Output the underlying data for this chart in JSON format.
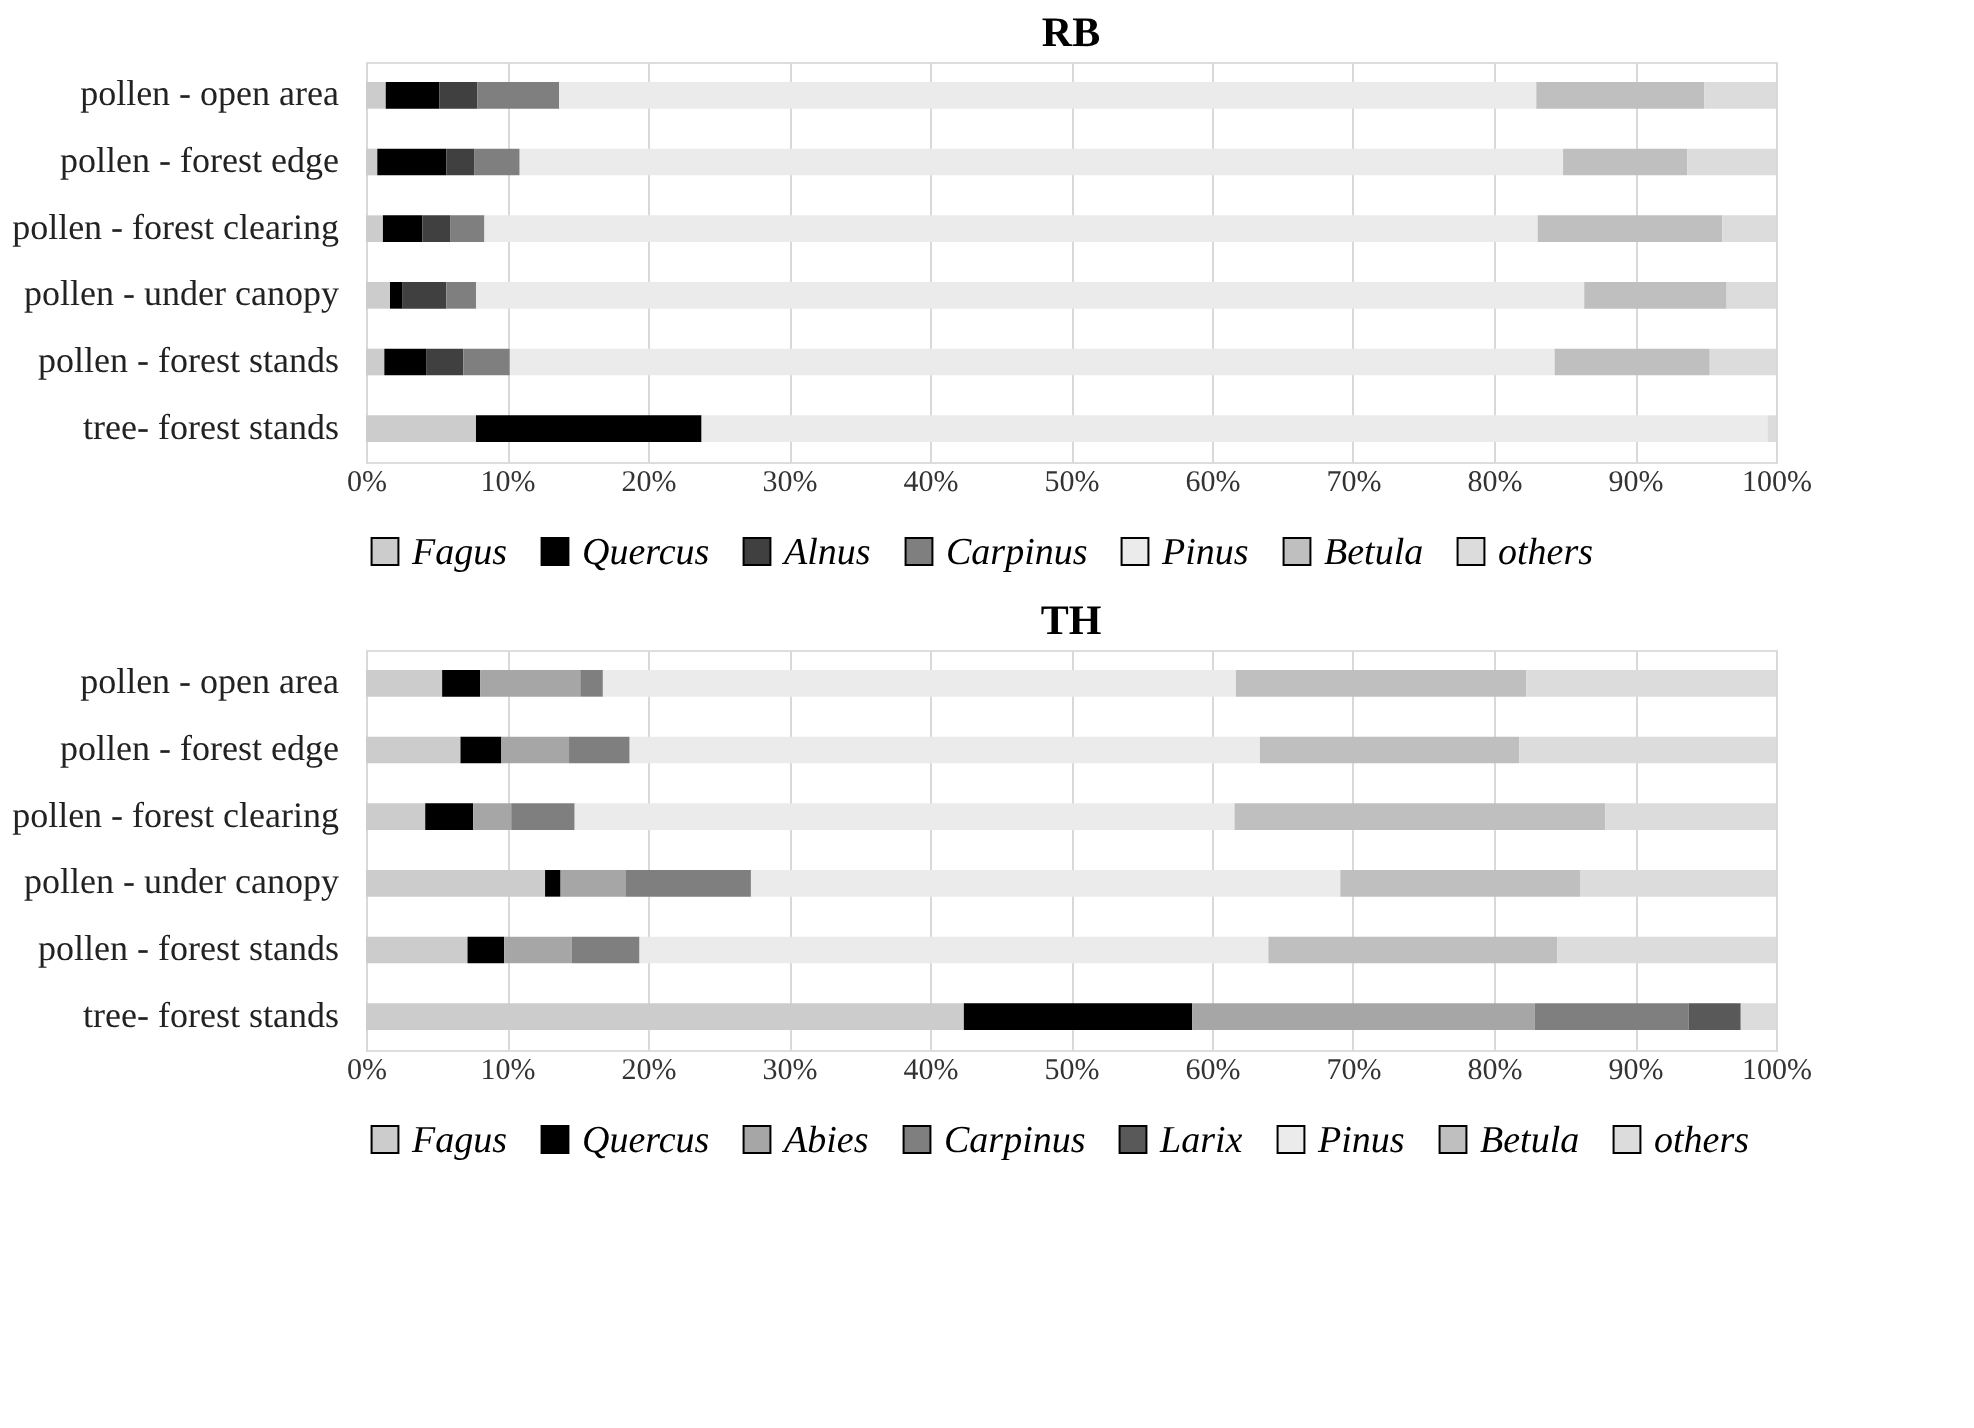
{
  "chart_data": [
    {
      "type": "bar",
      "title": "RB",
      "orientation": "horizontal",
      "stacked": true,
      "grid": "x",
      "legend": "bottom",
      "categories": [
        "pollen - open area",
        "pollen - forest edge",
        "pollen - forest clearing",
        "pollen - under canopy",
        "pollen - forest stands",
        "tree- forest stands"
      ],
      "xlim": [
        0,
        100
      ],
      "xticks": [
        {
          "value": 0,
          "label": "0%"
        },
        {
          "value": 10,
          "label": "10%"
        },
        {
          "value": 20,
          "label": "20%"
        },
        {
          "value": 30,
          "label": "30%"
        },
        {
          "value": 40,
          "label": "40%"
        },
        {
          "value": 50,
          "label": "50%"
        },
        {
          "value": 60,
          "label": "60%"
        },
        {
          "value": 70,
          "label": "70%"
        },
        {
          "value": 80,
          "label": "80%"
        },
        {
          "value": 90,
          "label": "90%"
        },
        {
          "value": 100,
          "label": "100%"
        }
      ],
      "series": [
        {
          "name": "Fagus",
          "color": "#cccccc",
          "values": [
            1.4,
            0.8,
            1.2,
            1.7,
            1.3,
            7.8
          ]
        },
        {
          "name": "Quercus",
          "color": "#000000",
          "values": [
            3.8,
            4.9,
            2.8,
            0.9,
            3.0,
            16.0
          ]
        },
        {
          "name": "Alnus",
          "color": "#404040",
          "values": [
            2.7,
            2.0,
            2.0,
            3.1,
            2.6,
            0
          ]
        },
        {
          "name": "Carpinus",
          "color": "#7f7f7f",
          "values": [
            5.8,
            3.2,
            2.4,
            2.1,
            3.3,
            0
          ]
        },
        {
          "name": "Pinus",
          "color": "#ebebeb",
          "values": [
            69.3,
            74.0,
            74.7,
            78.6,
            74.1,
            75.6
          ]
        },
        {
          "name": "Betula",
          "color": "#bfbfbf",
          "values": [
            11.9,
            8.8,
            13.1,
            10.1,
            11.0,
            0
          ]
        },
        {
          "name": "others",
          "color": "#dcdcdc",
          "values": [
            5.1,
            6.3,
            3.8,
            3.5,
            4.7,
            0.6
          ]
        }
      ]
    },
    {
      "type": "bar",
      "title": "TH",
      "orientation": "horizontal",
      "stacked": true,
      "grid": "x",
      "legend": "bottom",
      "categories": [
        "pollen - open area",
        "pollen - forest edge",
        "pollen - forest clearing",
        "pollen - under canopy",
        "pollen - forest stands",
        "tree- forest stands"
      ],
      "xlim": [
        0,
        100
      ],
      "xticks": [
        {
          "value": 0,
          "label": "0%"
        },
        {
          "value": 10,
          "label": "10%"
        },
        {
          "value": 20,
          "label": "20%"
        },
        {
          "value": 30,
          "label": "30%"
        },
        {
          "value": 40,
          "label": "40%"
        },
        {
          "value": 50,
          "label": "50%"
        },
        {
          "value": 60,
          "label": "60%"
        },
        {
          "value": 70,
          "label": "70%"
        },
        {
          "value": 80,
          "label": "80%"
        },
        {
          "value": 90,
          "label": "90%"
        },
        {
          "value": 100,
          "label": "100%"
        }
      ],
      "series": [
        {
          "name": "Fagus",
          "color": "#cccccc",
          "values": [
            5.4,
            6.7,
            4.2,
            12.7,
            7.2,
            42.4
          ]
        },
        {
          "name": "Quercus",
          "color": "#000000",
          "values": [
            2.7,
            2.9,
            3.4,
            1.1,
            2.6,
            16.2
          ]
        },
        {
          "name": "Abies",
          "color": "#a6a6a6",
          "values": [
            7.1,
            4.8,
            2.7,
            4.6,
            4.8,
            24.3
          ]
        },
        {
          "name": "Carpinus",
          "color": "#7f7f7f",
          "values": [
            1.6,
            4.3,
            4.5,
            8.9,
            4.8,
            10.9
          ]
        },
        {
          "name": "Larix",
          "color": "#595959",
          "values": [
            0,
            0,
            0,
            0,
            0,
            3.7
          ]
        },
        {
          "name": "Pinus",
          "color": "#ebebeb",
          "values": [
            44.9,
            44.7,
            46.8,
            41.8,
            44.6,
            0
          ]
        },
        {
          "name": "Betula",
          "color": "#bfbfbf",
          "values": [
            20.6,
            18.4,
            26.3,
            17.0,
            20.5,
            0
          ]
        },
        {
          "name": "others",
          "color": "#dcdcdc",
          "values": [
            17.7,
            18.2,
            12.1,
            13.9,
            15.5,
            2.5
          ]
        }
      ]
    }
  ]
}
